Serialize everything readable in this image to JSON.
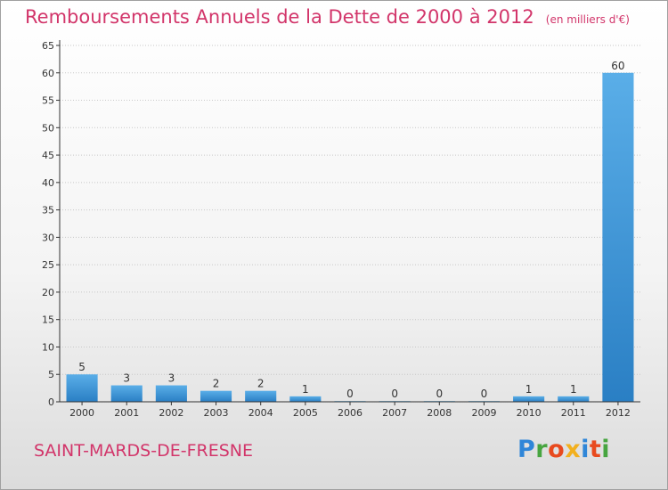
{
  "title": "Remboursements Annuels de la Dette de 2000 à 2012",
  "subtitle": "(en milliers d'€)",
  "commune": "SAINT-MARDS-DE-FRESNE",
  "logo": {
    "letters": [
      {
        "char": "P",
        "color": "#2f86d8"
      },
      {
        "char": "r",
        "color": "#47a540"
      },
      {
        "char": "o",
        "color": "#e84a1e"
      },
      {
        "char": "x",
        "color": "#f2b01e"
      },
      {
        "char": "i",
        "color": "#2f86d8"
      },
      {
        "char": "t",
        "color": "#e84a1e"
      },
      {
        "char": "i",
        "color": "#47a540"
      }
    ]
  },
  "colors": {
    "title": "#d2356a",
    "bar_top": "#5aaee8",
    "bar_bottom": "#2a7fc4",
    "axis": "#333333",
    "grid": "#c8c8c8"
  },
  "chart_data": {
    "type": "bar",
    "title": "Remboursements Annuels de la Dette de 2000 à 2012",
    "subtitle": "(en milliers d'€)",
    "xlabel": "",
    "ylabel": "",
    "categories": [
      "2000",
      "2001",
      "2002",
      "2003",
      "2004",
      "2005",
      "2006",
      "2007",
      "2008",
      "2009",
      "2010",
      "2011",
      "2012"
    ],
    "values": [
      5,
      3,
      3,
      2,
      2,
      1,
      0,
      0,
      0,
      0,
      1,
      1,
      60
    ],
    "ylim": [
      0,
      65
    ],
    "yticks": [
      0,
      5,
      10,
      15,
      20,
      25,
      30,
      35,
      40,
      45,
      50,
      55,
      60,
      65
    ],
    "grid": true,
    "data_labels": true
  }
}
